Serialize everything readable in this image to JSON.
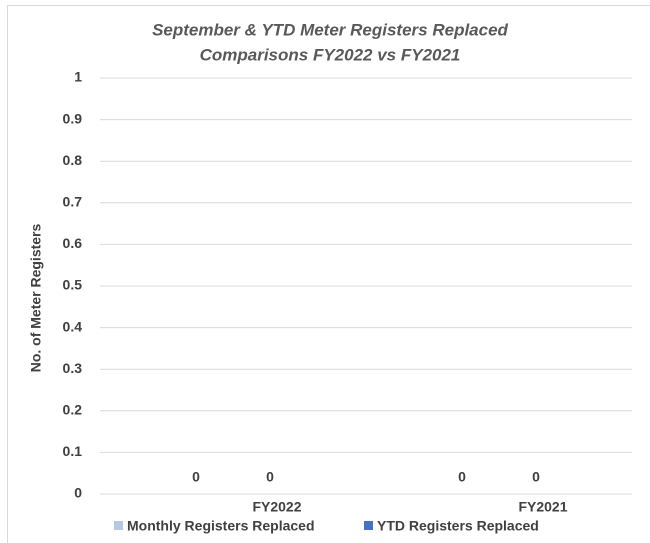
{
  "chart_data": {
    "type": "bar",
    "title": [
      "September & YTD  Meter Registers Replaced",
      "Comparisons FY2022 vs FY2021"
    ],
    "y_label": "No. of Meter Registers",
    "categories": [
      "FY2022",
      "FY2021"
    ],
    "series": [
      {
        "name": "Monthly Registers Replaced",
        "color": "#b4c7e7",
        "values": [
          0,
          0
        ]
      },
      {
        "name": "YTD Registers Replaced",
        "color": "#4472c4",
        "values": [
          0,
          0
        ]
      }
    ],
    "ylim": [
      0,
      1
    ],
    "yticks": [
      0,
      0.1,
      0.2,
      0.3,
      0.4,
      0.5,
      0.6,
      0.7,
      0.8,
      0.9,
      1
    ],
    "grid": true,
    "legend": "bottom"
  }
}
